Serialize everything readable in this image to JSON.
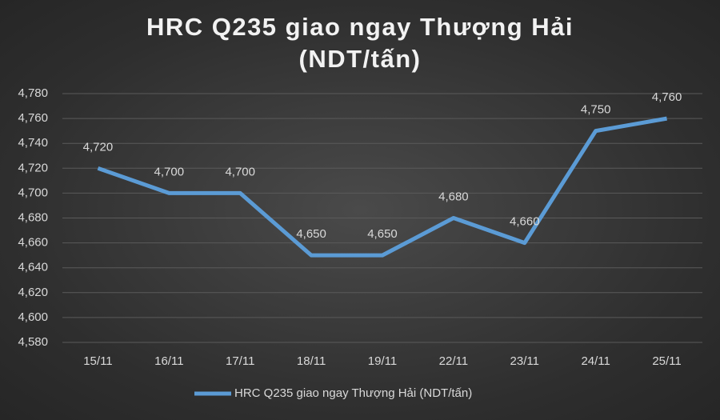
{
  "chart_data": {
    "type": "line",
    "title": "HRC Q235 giao ngay Thượng Hải (NDT/tấn)",
    "categories": [
      "15/11",
      "16/11",
      "17/11",
      "18/11",
      "19/11",
      "22/11",
      "23/11",
      "24/11",
      "25/11"
    ],
    "series": [
      {
        "name": "HRC Q235 giao ngay Thượng Hải (NDT/tấn)",
        "color": "#5b9bd5",
        "values": [
          4720,
          4700,
          4700,
          4650,
          4650,
          4680,
          4660,
          4750,
          4760
        ],
        "value_labels": [
          "4,720",
          "4,700",
          "4,700",
          "4,650",
          "4,650",
          "4,680",
          "4,660",
          "4,750",
          "4,760"
        ]
      }
    ],
    "ylim": [
      4580,
      4780
    ],
    "yticks": [
      {
        "value": 4580,
        "label": "4,580"
      },
      {
        "value": 4600,
        "label": "4,600"
      },
      {
        "value": 4620,
        "label": "4,620"
      },
      {
        "value": 4640,
        "label": "4,640"
      },
      {
        "value": 4660,
        "label": "4,660"
      },
      {
        "value": 4680,
        "label": "4,680"
      },
      {
        "value": 4700,
        "label": "4,700"
      },
      {
        "value": 4720,
        "label": "4,720"
      },
      {
        "value": 4740,
        "label": "4,740"
      },
      {
        "value": 4760,
        "label": "4,760"
      },
      {
        "value": 4780,
        "label": "4,780"
      }
    ],
    "grid": true,
    "legend": "bottom"
  }
}
